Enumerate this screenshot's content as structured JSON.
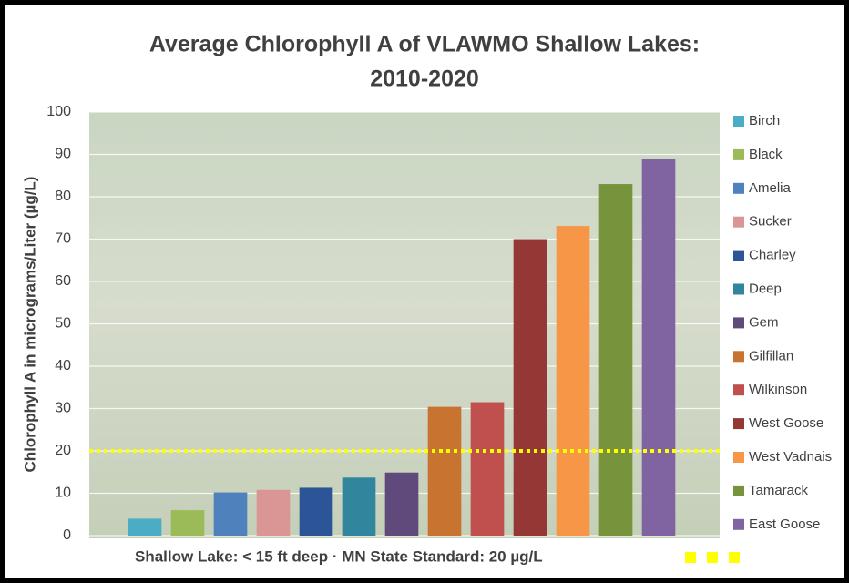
{
  "chart_data": {
    "type": "bar",
    "title": "Average Chlorophyll A of VLAWMO Shallow Lakes:",
    "subtitle": "2010-2020",
    "y_label": "Chlorophyll A in micrograms/Liter (µg/L)",
    "categories": [
      "Birch",
      "Black",
      "Amelia",
      "Sucker",
      "Charley",
      "Deep",
      "Gem",
      "Gilfillan",
      "Wilkinson",
      "West Goose",
      "West Vadnais",
      "Tamarack",
      "East Goose"
    ],
    "values": [
      4,
      6,
      10.2,
      10.8,
      11.3,
      13.7,
      14.9,
      30.4,
      31.5,
      70,
      73.1,
      83,
      89
    ],
    "colors": [
      "#4bacc6",
      "#9bbb59",
      "#4f81bd",
      "#d99694",
      "#2c5597",
      "#31859c",
      "#604a7b",
      "#c8732f",
      "#c0504d",
      "#953735",
      "#f79646",
      "#77933c",
      "#8064a2"
    ],
    "ylim": [
      0,
      100
    ],
    "yticks": [
      0,
      10,
      20,
      30,
      40,
      50,
      60,
      70,
      80,
      90,
      100
    ],
    "grid": true,
    "reference_line": {
      "value": 20,
      "color": "#ffff00"
    },
    "footer": "Shallow Lake: < 15 ft deep  ·  MN State Standard: 20 µg/L",
    "legend": "right"
  }
}
